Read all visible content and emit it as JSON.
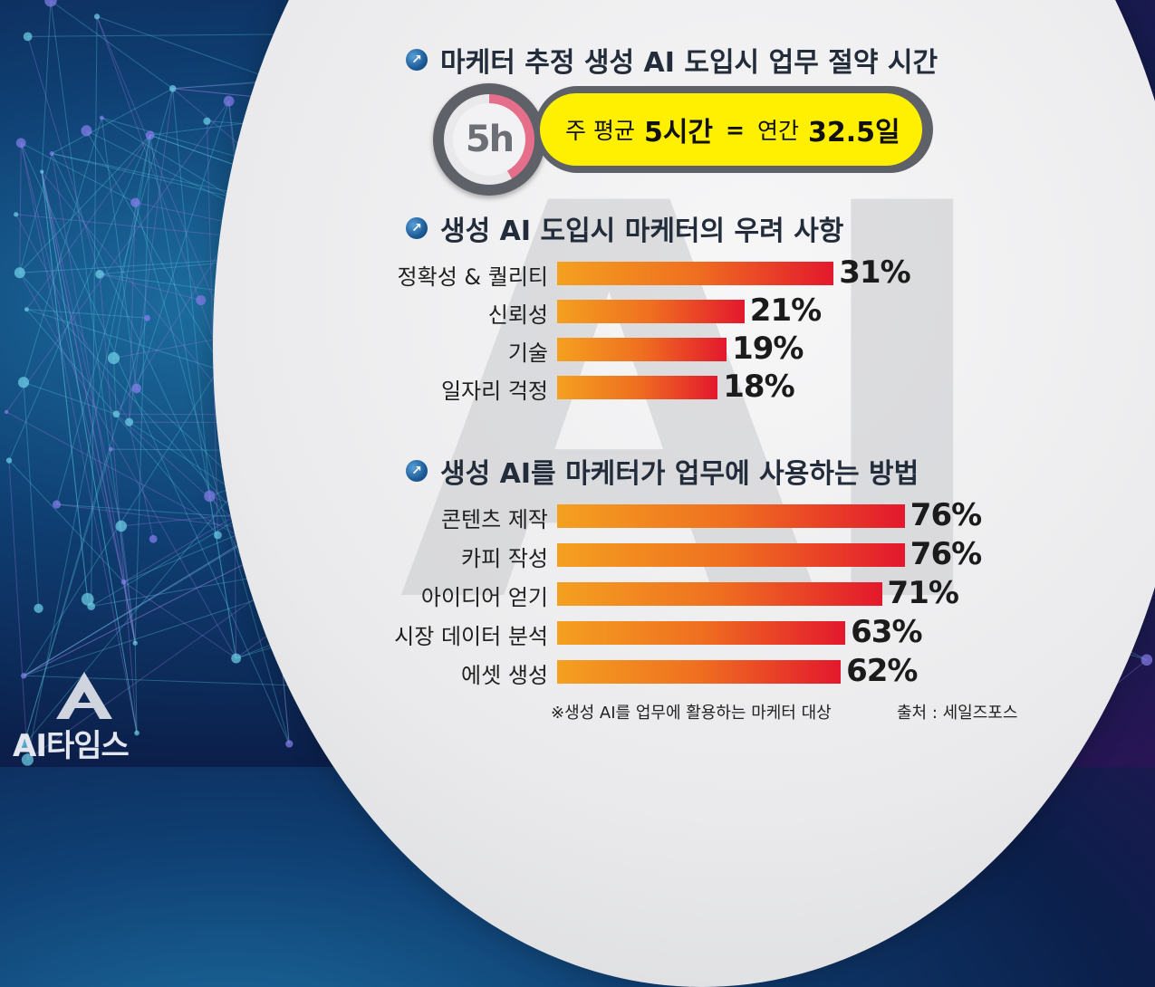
{
  "header": {
    "title1": "마케터 추정 생성 AI 도입시 업무 절약 시간",
    "title2": "생성 AI 도입시 마케터의 우려 사항",
    "title3": "생성 AI를 마케터가 업무에 사용하는 방법"
  },
  "time_saving": {
    "clock_label": "5h",
    "clock_fraction": 0.4167,
    "weekly_prefix": "주 평균",
    "weekly_value": "5시간",
    "equals": "=",
    "annual_prefix": "연간",
    "annual_value": "32.5일"
  },
  "chart_data": [
    {
      "type": "bar",
      "title": "생성 AI 도입시 마케터의 우려 사항",
      "categories": [
        "정확성 & 퀄리티",
        "신뢰성",
        "기술",
        "일자리 걱정"
      ],
      "values": [
        31,
        21,
        19,
        18
      ],
      "value_labels": [
        "31%",
        "21%",
        "19%",
        "18%"
      ],
      "orientation": "horizontal"
    },
    {
      "type": "bar",
      "title": "생성 AI를 마케터가 업무에 사용하는 방법",
      "categories": [
        "콘텐츠 제작",
        "카피 작성",
        "아이디어 얻기",
        "시장 데이터 분석",
        "에셋 생성"
      ],
      "values": [
        76,
        76,
        71,
        63,
        62
      ],
      "value_labels": [
        "76%",
        "76%",
        "71%",
        "63%",
        "62%"
      ],
      "orientation": "horizontal"
    }
  ],
  "footer": {
    "footnote": "※생성 AI를 업무에 활용하는 마케터 대상",
    "source": "출처 : 세일즈포스"
  },
  "logo": {
    "text": "AI타임스"
  },
  "watermark": {
    "text": "AI"
  },
  "colors": {
    "bar_start": "#f4a020",
    "bar_end": "#e3182d",
    "highlight": "#ffef00",
    "title_text": "#222c3a"
  }
}
